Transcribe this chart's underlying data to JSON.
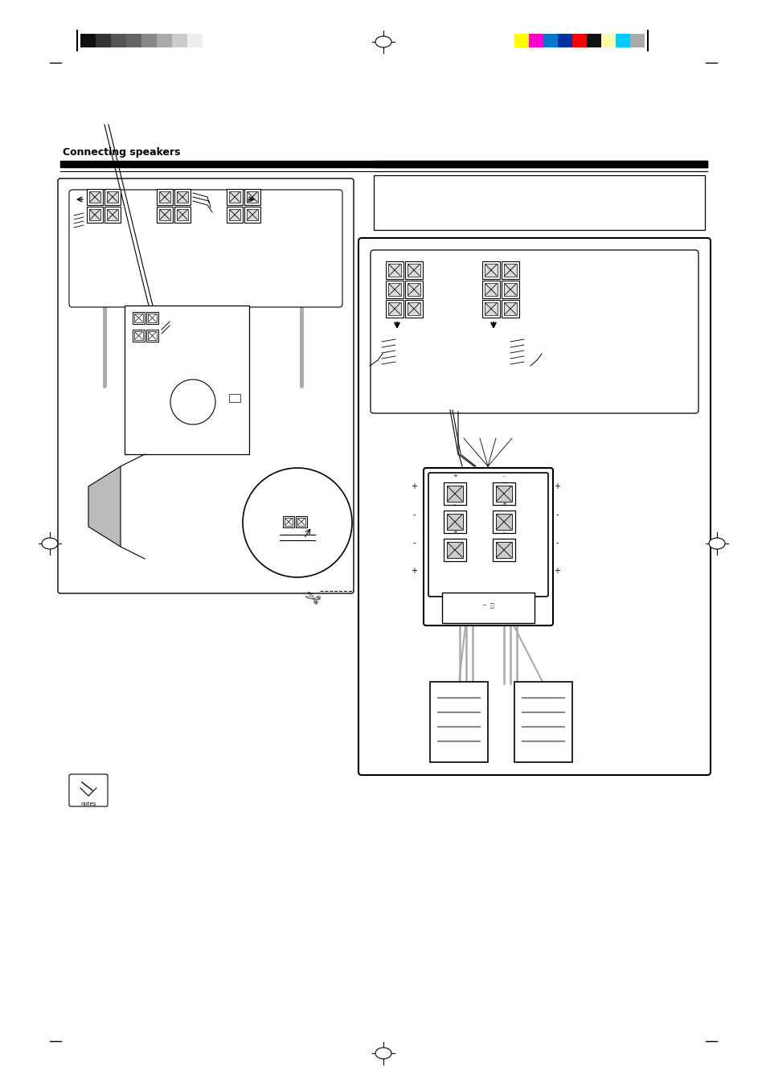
{
  "bg_color": "#ffffff",
  "page_width": 9.54,
  "page_height": 13.52,
  "bar_colors_left": [
    "#111111",
    "#333333",
    "#555555",
    "#666666",
    "#888888",
    "#aaaaaa",
    "#cccccc",
    "#eeeeee"
  ],
  "bar_colors_right": [
    "#ffff00",
    "#ff00cc",
    "#0077cc",
    "#003399",
    "#ff0000",
    "#111111",
    "#ffffaa",
    "#00ccff",
    "#aaaaaa"
  ],
  "title_text": "Connecting speakers"
}
